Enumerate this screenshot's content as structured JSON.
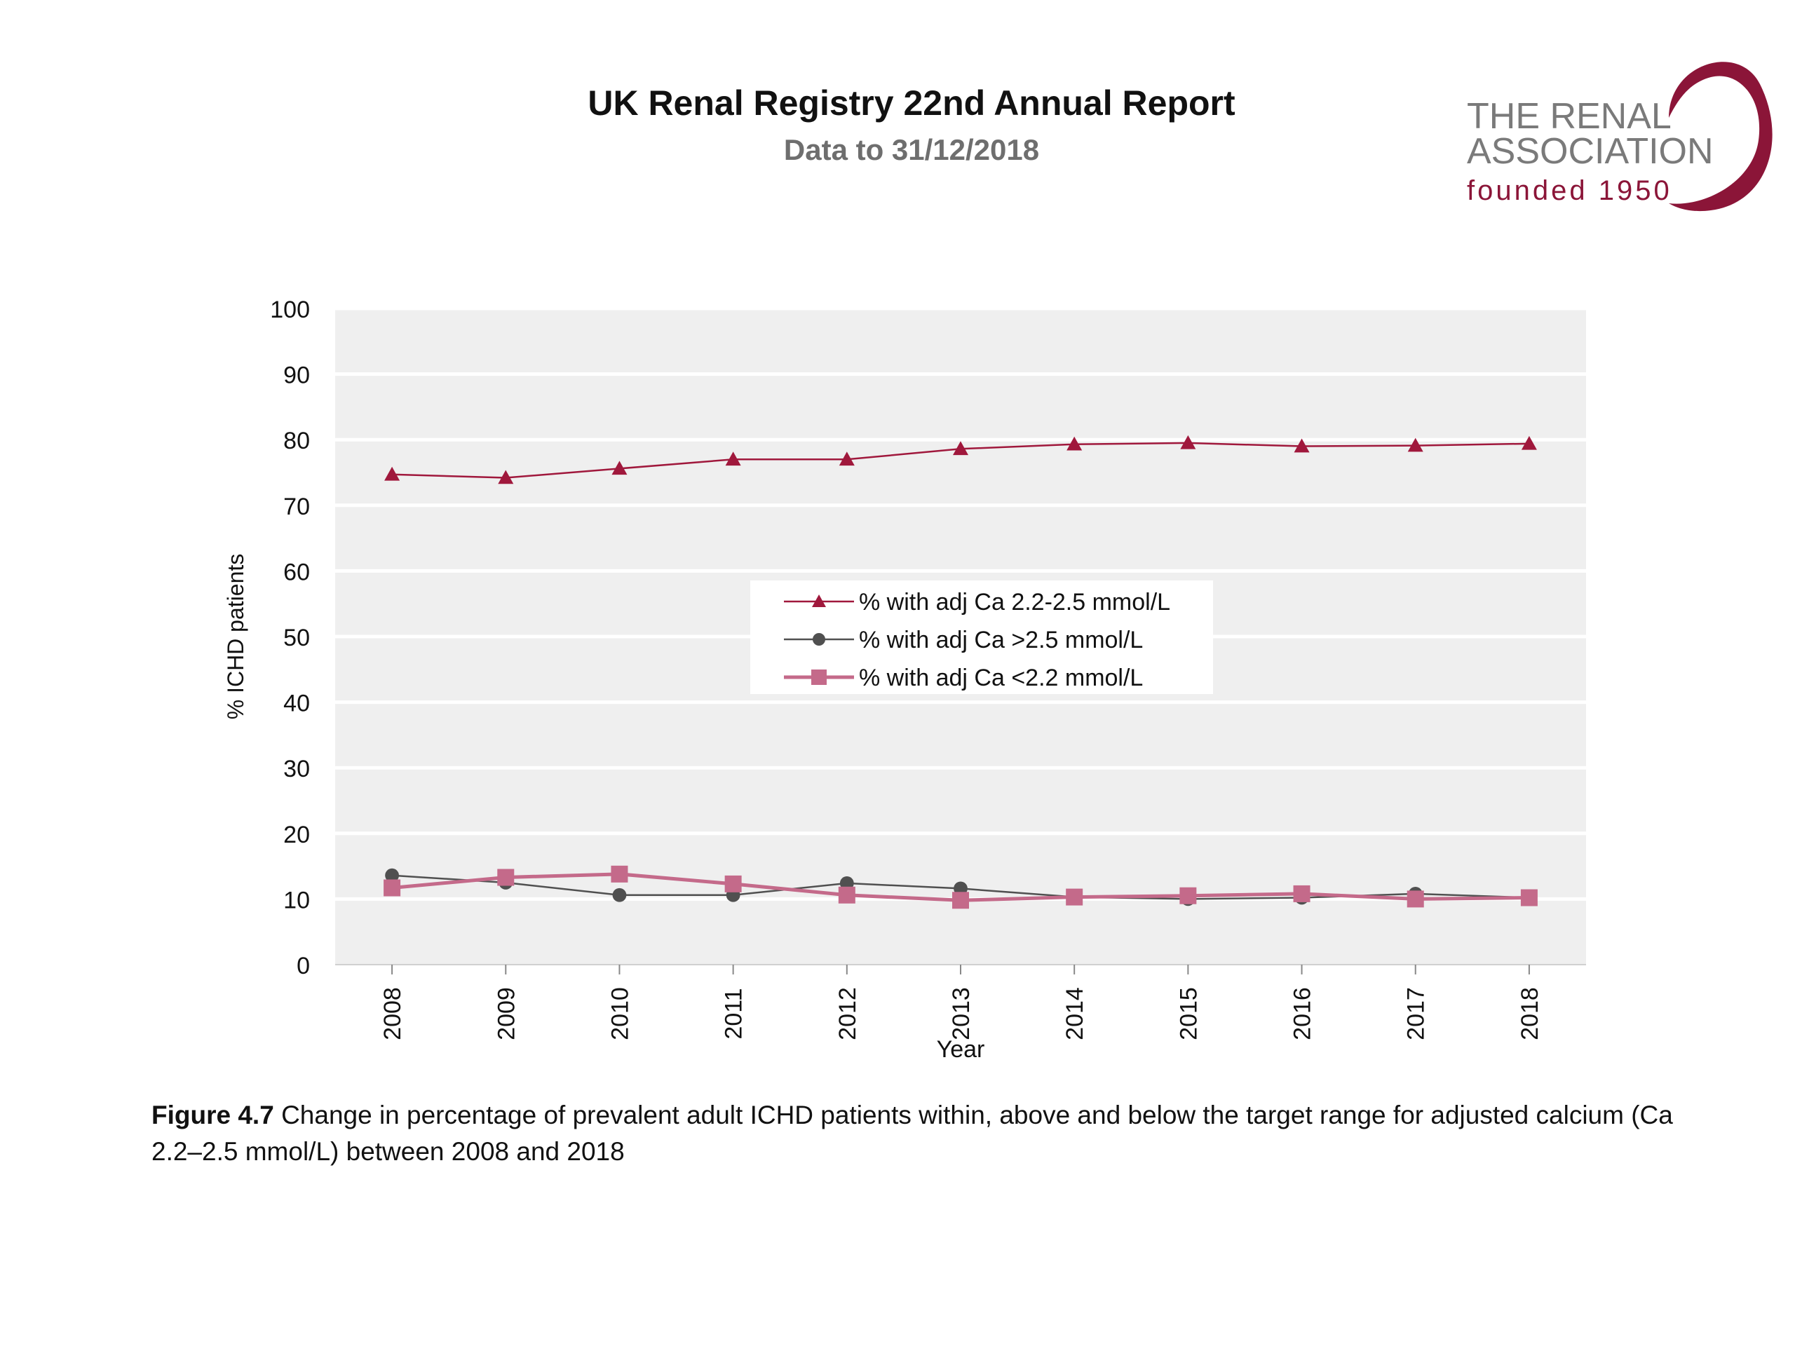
{
  "header": {
    "title": "UK Renal Registry 22nd Annual Report",
    "subtitle": "Data to 31/12/2018"
  },
  "logo": {
    "line1": "THE RENAL",
    "line2": "ASSOCIATION",
    "line3": "founded 1950"
  },
  "caption": {
    "label": "Figure 4.7",
    "text": "Change in percentage of prevalent adult ICHD patients within, above and below the target range for adjusted calcium (Ca 2.2–2.5 mmol/L) between 2008 and 2018"
  },
  "colors": {
    "plot_bg": "#efefef",
    "grid": "#ffffff",
    "within": "#a0183c",
    "above": "#505050",
    "below": "#c46a8a",
    "logo_accent": "#8b1538"
  },
  "chart_data": {
    "type": "line",
    "xlabel": "Year",
    "ylabel": "% ICHD patients",
    "ylim": [
      0,
      100
    ],
    "yticks": [
      0,
      10,
      20,
      30,
      40,
      50,
      60,
      70,
      80,
      90,
      100
    ],
    "categories": [
      "2008",
      "2009",
      "2010",
      "2011",
      "2012",
      "2013",
      "2014",
      "2015",
      "2016",
      "2017",
      "2018"
    ],
    "grid": true,
    "legend_position": "center",
    "series": [
      {
        "name": "% with adj Ca 2.2-2.5 mmol/L",
        "marker": "triangle",
        "color": "#a0183c",
        "values": [
          74.7,
          74.2,
          75.6,
          77.0,
          77.0,
          78.6,
          79.3,
          79.5,
          79.0,
          79.1,
          79.4
        ]
      },
      {
        "name": "% with adj Ca >2.5 mmol/L",
        "marker": "circle",
        "color": "#505050",
        "values": [
          13.6,
          12.5,
          10.6,
          10.6,
          12.4,
          11.6,
          10.3,
          10.0,
          10.2,
          10.8,
          10.2
        ]
      },
      {
        "name": "% with adj Ca <2.2 mmol/L",
        "marker": "square",
        "color": "#c46a8a",
        "values": [
          11.7,
          13.3,
          13.8,
          12.3,
          10.6,
          9.8,
          10.3,
          10.5,
          10.8,
          10.0,
          10.2
        ]
      }
    ]
  }
}
